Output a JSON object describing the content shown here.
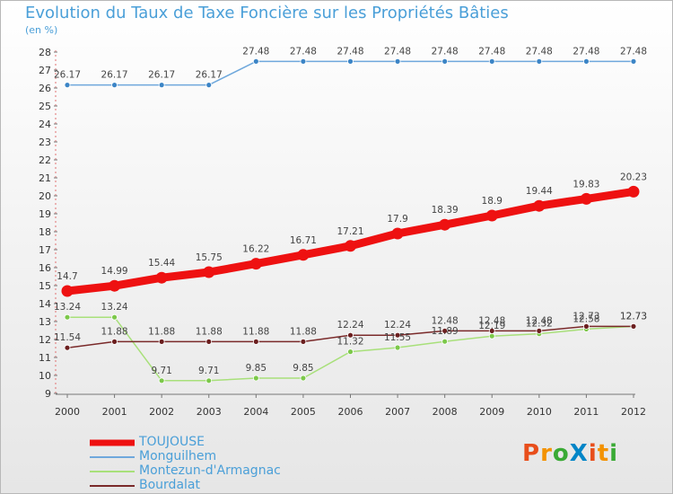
{
  "title": "Evolution du Taux de Taxe Foncière sur les Propriétés Bâties",
  "unit_label": "(en %)",
  "logo": {
    "text": "ProXiti",
    "letter_colors": [
      "#e84e1b",
      "#f39200",
      "#3aaa35",
      "#0085c7",
      "#e84e1b",
      "#f39200",
      "#3aaa35"
    ]
  },
  "chart_data": {
    "type": "line",
    "title": "Evolution du Taux de Taxe Foncière sur les Propriétés Bâties",
    "ylabel": "(en %)",
    "xlabel": "",
    "x": [
      "2000",
      "2001",
      "2002",
      "2003",
      "2004",
      "2005",
      "2006",
      "2007",
      "2008",
      "2009",
      "2010",
      "2011",
      "2012"
    ],
    "ylim": [
      9,
      28
    ],
    "yticks": [
      "9",
      "10",
      "11",
      "12",
      "13",
      "14",
      "15",
      "16",
      "17",
      "18",
      "19",
      "20",
      "21",
      "22",
      "23",
      "24",
      "25",
      "26",
      "27",
      "28"
    ],
    "grid": false,
    "legend_position": "bottom-left",
    "series": [
      {
        "name": "TOUJOUSE",
        "color": "#ee1111",
        "style": "thick",
        "values": [
          14.7,
          14.99,
          15.44,
          15.75,
          16.22,
          16.71,
          17.21,
          17.9,
          18.39,
          18.9,
          19.44,
          19.83,
          20.23
        ],
        "labels": [
          "14.7",
          "14.99",
          "15.44",
          "15.75",
          "16.22",
          "16.71",
          "17.21",
          "17.9",
          "18.39",
          "18.9",
          "19.44",
          "19.83",
          "20.23"
        ]
      },
      {
        "name": "Monguilhem",
        "color": "#6fa8dc",
        "marker_color": "#3c85c6",
        "values": [
          26.17,
          26.17,
          26.17,
          26.17,
          27.48,
          27.48,
          27.48,
          27.48,
          27.48,
          27.48,
          27.48,
          27.48,
          27.48
        ],
        "labels": [
          "26.17",
          "26.17",
          "26.17",
          "26.17",
          "27.48",
          "27.48",
          "27.48",
          "27.48",
          "27.48",
          "27.48",
          "27.48",
          "27.48",
          "27.48"
        ]
      },
      {
        "name": "Montezun-d'Armagnac",
        "color": "#a8e07a",
        "marker_color": "#7cc84a",
        "values": [
          13.24,
          13.24,
          9.71,
          9.71,
          9.85,
          9.85,
          11.32,
          11.55,
          11.89,
          12.19,
          12.32,
          12.58,
          12.73
        ],
        "labels": [
          "13.24",
          "13.24",
          "9.71",
          "9.71",
          "9.85",
          "9.85",
          "11.32",
          "11.55",
          "11.89",
          "12.19",
          "12.32",
          "12.58",
          "12.73"
        ]
      },
      {
        "name": "Bourdalat",
        "color": "#7a2a2a",
        "marker_color": "#6b1f1f",
        "values": [
          11.54,
          11.88,
          11.88,
          11.88,
          11.88,
          11.88,
          12.24,
          12.24,
          12.48,
          12.48,
          12.48,
          12.73,
          12.73
        ],
        "labels": [
          "11.54",
          "11.88",
          "11.88",
          "11.88",
          "11.88",
          "11.88",
          "12.24",
          "12.24",
          "12.48",
          "12.48",
          "12.48",
          "12.73",
          "12.73"
        ]
      }
    ]
  }
}
